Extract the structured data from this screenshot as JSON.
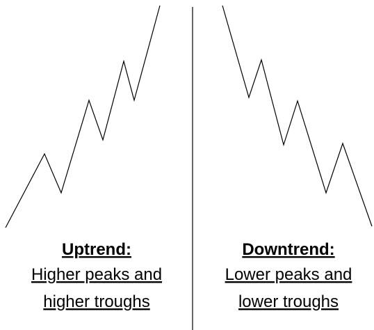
{
  "panels": [
    {
      "title": "Uptrend:",
      "lines": [
        "Higher peaks and",
        "higher troughs"
      ]
    },
    {
      "title": "Downtrend:",
      "lines": [
        "Lower peaks and",
        "lower troughs"
      ]
    }
  ]
}
